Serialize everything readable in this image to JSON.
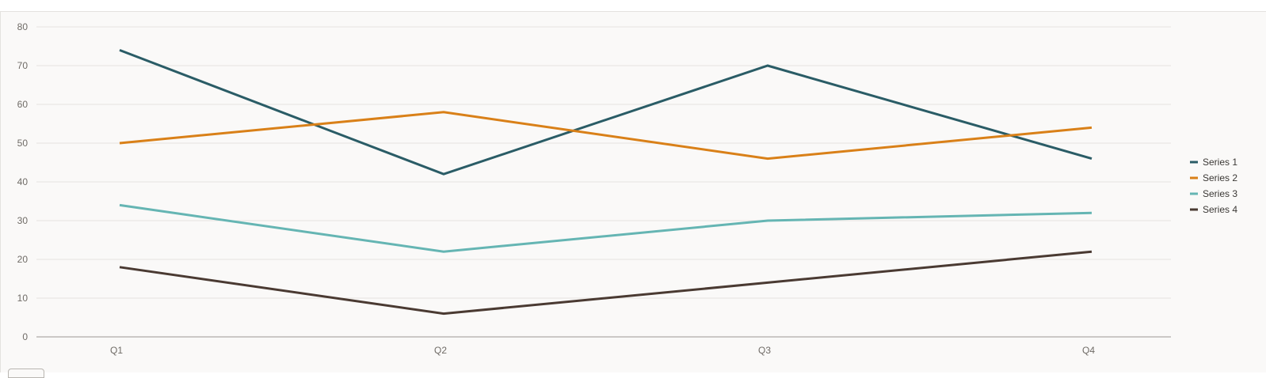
{
  "chart_data": {
    "type": "line",
    "categories": [
      "Q1",
      "Q2",
      "Q3",
      "Q4"
    ],
    "ylim": [
      0,
      80
    ],
    "yticks": [
      0,
      10,
      20,
      30,
      40,
      50,
      60,
      70,
      80
    ],
    "grid": true,
    "legend_position": "right",
    "series": [
      {
        "name": "Series 1",
        "color": "#2a5c66",
        "values": [
          74,
          42,
          70,
          46
        ]
      },
      {
        "name": "Series 2",
        "color": "#d98018",
        "values": [
          50,
          58,
          46,
          54
        ]
      },
      {
        "name": "Series 3",
        "color": "#65b5b3",
        "values": [
          34,
          22,
          30,
          32
        ]
      },
      {
        "name": "Series 4",
        "color": "#4a3a32",
        "values": [
          18,
          6,
          14,
          22
        ]
      }
    ]
  }
}
